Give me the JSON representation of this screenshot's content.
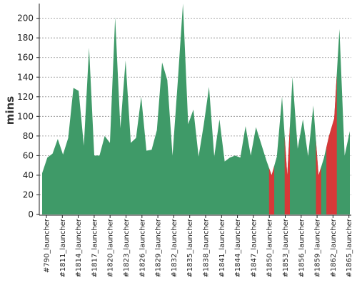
{
  "chart_data": {
    "type": "area",
    "ylabel": "mins",
    "xlabel": "",
    "ylim": [
      0,
      215
    ],
    "yticks": [
      0,
      20,
      40,
      60,
      80,
      100,
      120,
      140,
      160,
      180,
      200
    ],
    "grid": "horizontal dashed",
    "legend": "none",
    "x_tick_labels": [
      "#790_launcher",
      "#1811_launcher",
      "#1814_launcher",
      "#1817_launcher",
      "#1820_launcher",
      "#1823_launcher",
      "#1826_launcher",
      "#1829_launcher",
      "#1832_launcher",
      "#1835_launcher",
      "#1838_launcher",
      "#1841_launcher",
      "#1844_launcher",
      "#1847_launcher",
      "#1850_launcher",
      "#1853_launcher",
      "#1856_launcher",
      "#1859_launcher",
      "#1862_launcher",
      "#1865_launcher"
    ],
    "series": [
      {
        "color": "#3f9a68",
        "values": [
          42,
          58,
          62,
          77,
          61,
          78,
          129,
          126,
          70,
          170,
          60,
          60,
          80,
          73,
          201,
          88,
          157,
          73,
          78,
          120,
          65,
          66,
          86,
          155,
          137,
          60,
          135,
          225,
          92,
          107,
          59,
          92,
          130,
          59,
          97,
          54,
          58,
          60,
          58,
          90,
          60,
          89,
          72,
          55,
          40,
          59,
          120,
          40,
          140,
          67,
          97,
          59,
          111,
          40,
          57,
          80,
          98,
          189,
          60,
          85
        ]
      }
    ],
    "highlight_color": "#d73838",
    "highlight_indices": [
      44,
      47,
      53,
      55,
      56
    ]
  }
}
